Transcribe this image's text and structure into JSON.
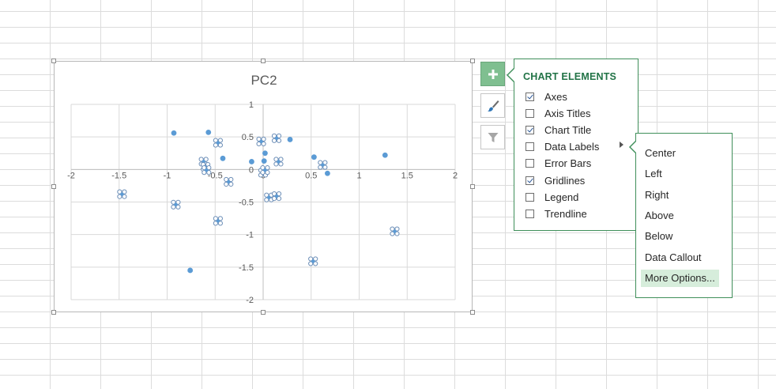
{
  "chart_data": {
    "type": "scatter",
    "title": "PC2",
    "xlabel": "",
    "ylabel": "",
    "xlim": [
      -2,
      2
    ],
    "ylim": [
      -2,
      1
    ],
    "x_ticks": [
      "-2",
      "-1.5",
      "-1",
      "-0.5",
      "0",
      "0.5",
      "1",
      "1.5",
      "2"
    ],
    "y_ticks": [
      "1",
      "0.5",
      "0",
      "-0.5",
      "-1",
      "-1.5",
      "-2"
    ],
    "grid": true,
    "color": "#5b9bd5",
    "selected_points": [
      {
        "x": -1.47,
        "y": -0.38
      },
      {
        "x": -0.91,
        "y": -0.54
      },
      {
        "x": -0.62,
        "y": 0.12
      },
      {
        "x": -0.6,
        "y": 0.04
      },
      {
        "x": -0.59,
        "y": -0.01
      },
      {
        "x": -0.47,
        "y": 0.41
      },
      {
        "x": -0.47,
        "y": -0.79
      },
      {
        "x": -0.36,
        "y": -0.19
      },
      {
        "x": -0.02,
        "y": 0.43
      },
      {
        "x": 0.0,
        "y": -0.05
      },
      {
        "x": 0.02,
        "y": -0.01
      },
      {
        "x": 0.06,
        "y": -0.43
      },
      {
        "x": 0.14,
        "y": 0.48
      },
      {
        "x": 0.14,
        "y": -0.41
      },
      {
        "x": 0.16,
        "y": 0.12
      },
      {
        "x": 0.52,
        "y": -1.41
      },
      {
        "x": 0.62,
        "y": 0.07
      },
      {
        "x": 1.37,
        "y": -0.95
      }
    ],
    "plain_points": [
      {
        "x": -0.93,
        "y": 0.56
      },
      {
        "x": -0.57,
        "y": 0.57
      },
      {
        "x": -0.42,
        "y": 0.17
      },
      {
        "x": -0.12,
        "y": 0.12
      },
      {
        "x": 0.01,
        "y": 0.13
      },
      {
        "x": 0.02,
        "y": 0.25
      },
      {
        "x": 0.28,
        "y": 0.46
      },
      {
        "x": 0.53,
        "y": 0.19
      },
      {
        "x": 0.67,
        "y": -0.06
      },
      {
        "x": 1.27,
        "y": 0.22
      },
      {
        "x": -0.76,
        "y": -1.55
      }
    ]
  },
  "side_buttons": {
    "chart_elements": "+",
    "chart_styles": "brush-icon",
    "chart_filters": "filter-icon"
  },
  "panel": {
    "header": "CHART ELEMENTS",
    "items": [
      {
        "label": "Axes",
        "checked": true
      },
      {
        "label": "Axis Titles",
        "checked": false
      },
      {
        "label": "Chart Title",
        "checked": true
      },
      {
        "label": "Data Labels",
        "checked": false
      },
      {
        "label": "Error Bars",
        "checked": false
      },
      {
        "label": "Gridlines",
        "checked": true
      },
      {
        "label": "Legend",
        "checked": false
      },
      {
        "label": "Trendline",
        "checked": false
      }
    ]
  },
  "submenu": {
    "items": [
      "Center",
      "Left",
      "Right",
      "Above",
      "Below",
      "Data Callout",
      "More Options..."
    ],
    "highlighted": "More Options..."
  },
  "colors": {
    "accent": "#217346",
    "button_active": "#7fbf90",
    "highlight": "#d6eddb",
    "point": "#5b9bd5"
  }
}
